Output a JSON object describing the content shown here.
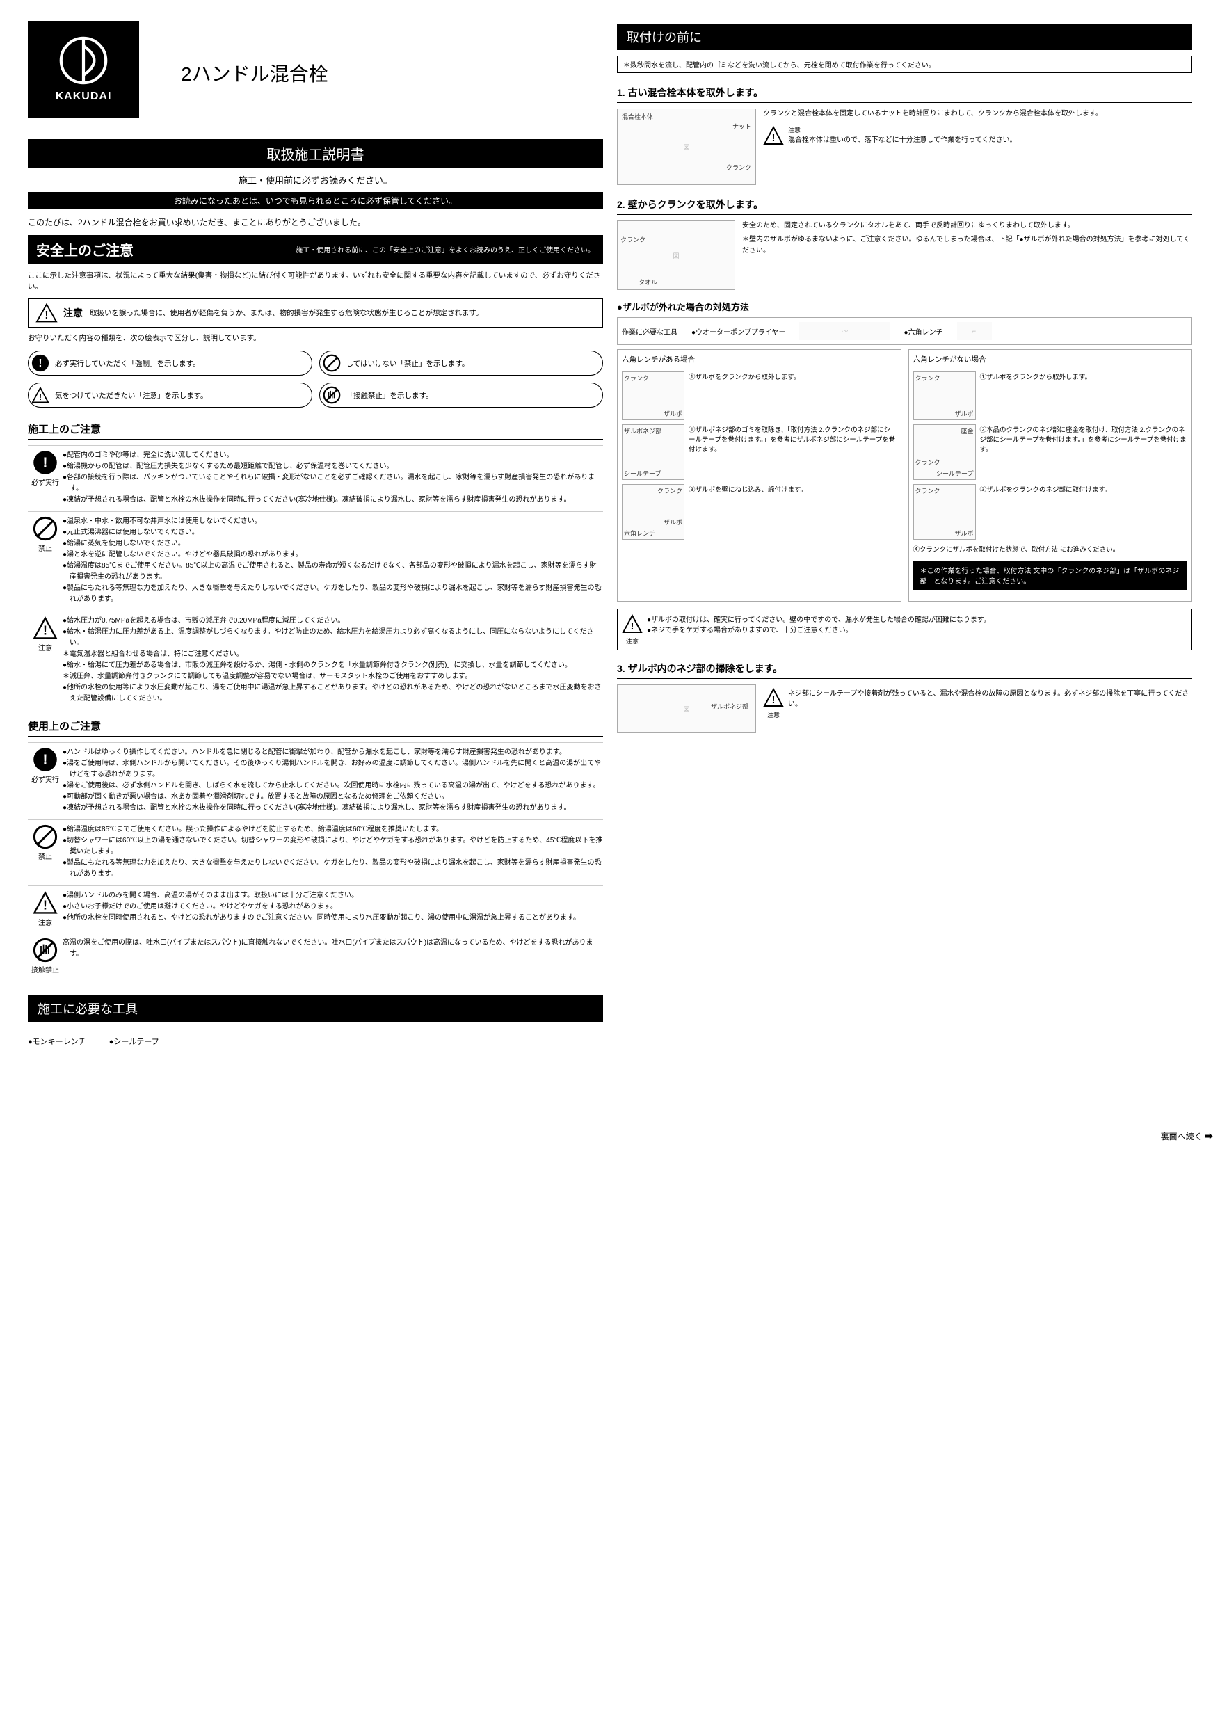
{
  "brand": "KAKUDAI",
  "product_title": "2ハンドル混合栓",
  "manual_title": "取扱施工説明書",
  "subtitle1": "施工・使用前に必ずお読みください。",
  "subtitle2": "お読みになったあとは、いつでも見られるところに必ず保管してください。",
  "intro": "このたびは、2ハンドル混合栓をお買い求めいただき、まことにありがとうございました。",
  "safety": {
    "header_big": "安全上のご注意",
    "header_small": "施工・使用される前に、この「安全上のご注意」をよくお読みのうえ、正しくご使用ください。",
    "intro": "ここに示した注意事項は、状況によって重大な結果(傷害・物損など)に結び付く可能性があります。いずれも安全に関する重要な内容を記載していますので、必ずお守りください。",
    "caution_label": "注意",
    "caution_text": "取扱いを誤った場合に、使用者が軽傷を負うか、または、物的損害が発生する危険な状態が生じることが想定されます。",
    "legend_intro": "お守りいただく内容の種類を、次の絵表示で区分し、説明しています。",
    "legend1": "必ず実行していただく「強制」を示します。",
    "legend2": "してはいけない「禁止」を示します。",
    "legend3": "気をつけていただきたい「注意」を示します。",
    "legend4": "「接触禁止」を示します。"
  },
  "construction": {
    "title": "施工上のご注意",
    "b1_label": "必ず実行",
    "b1_items": [
      "●配管内のゴミや砂等は、完全に洗い流してください。",
      "●給湯機からの配管は、配管圧力損失を少なくするため最短距離で配管し、必ず保温材を巻いてください。",
      "●各部の接続を行う際は、パッキンがついていることやそれらに破損・変形がないことを必ずご確認ください。漏水を起こし、家財等を濡らす財産損害発生の恐れがあります。",
      "●凍結が予想される場合は、配管と水栓の水抜操作を同時に行ってください(寒冷地仕様)。凍結破損により漏水し、家財等を濡らす財産損害発生の恐れがあります。"
    ],
    "b2_label": "禁止",
    "b2_items": [
      "●温泉水・中水・飲用不可な井戸水には使用しないでください。",
      "●元止式湯沸器には使用しないでください。",
      "●給湯に蒸気を使用しないでください。",
      "●湯と水を逆に配管しないでください。やけどや器具破損の恐れがあります。",
      "●給湯温度は85℃までご使用ください。85℃以上の高温でご使用されると、製品の寿命が短くなるだけでなく、各部品の変形や破損により漏水を起こし、家財等を濡らす財産損害発生の恐れがあります。",
      "●製品にもたれる等無理な力を加えたり、大きな衝撃を与えたりしないでください。ケガをしたり、製品の変形や破損により漏水を起こし、家財等を濡らす財産損害発生の恐れがあります。"
    ],
    "b3_label": "注意",
    "b3_items": [
      "●給水圧力が0.75MPaを超える場合は、市販の減圧弁で0.20MPa程度に減圧してください。",
      "●給水・給湯圧力に圧力差がある上、温度調整がしづらくなります。やけど防止のため、給水圧力を給湯圧力より必ず高くなるようにし、同圧にならないようにしてください。",
      "＊電気温水器と組合わせる場合は、特にご注意ください。",
      "●給水・給湯にて圧力差がある場合は、市販の減圧弁を設けるか、湯側・水側のクランクを「水量調節弁付きクランク(別売)」に交換し、水量を調節してください。",
      "＊減圧弁、水量調節弁付きクランクにて調節しても温度調整が容易でない場合は、サーモスタット水栓のご使用をおすすめします。",
      "●他所の水栓の使用等により水圧変動が起こり、湯をご使用中に湯温が急上昇することがあります。やけどの恐れがあるため、やけどの恐れがないところまで水圧変動をおさえた配管設備にしてください。"
    ]
  },
  "usage": {
    "title": "使用上のご注意",
    "b1_label": "必ず実行",
    "b1_items": [
      "●ハンドルはゆっくり操作してください。ハンドルを急に閉じると配管に衝撃が加わり、配管から漏水を起こし、家財等を濡らす財産損害発生の恐れがあります。",
      "●湯をご使用時は、水側ハンドルから開いてください。その後ゆっくり湯側ハンドルを開き、お好みの温度に調節してください。湯側ハンドルを先に開くと高温の湯が出てやけどをする恐れがあります。",
      "●湯をご使用後は、必ず水側ハンドルを開き、しばらく水を流してから止水してください。次回使用時に水栓内に残っている高温の湯が出て、やけどをする恐れがあります。",
      "●可動部が固く動きが悪い場合は、水あか固着や潤滑剤切れです。放置すると故障の原因となるため修理をご依頼ください。",
      "●凍結が予想される場合は、配管と水栓の水抜操作を同時に行ってください(寒冷地仕様)。凍結破損により漏水し、家財等を濡らす財産損害発生の恐れがあります。"
    ],
    "b2_label": "禁止",
    "b2_items": [
      "●給湯温度は85℃までご使用ください。誤った操作によるやけどを防止するため、給湯温度は60℃程度を推奨いたします。",
      "●切替シャワーには60℃以上の湯を通さないでください。切替シャワーの変形や破損により、やけどやケガをする恐れがあります。やけどを防止するため、45℃程度以下を推奨いたします。",
      "●製品にもたれる等無理な力を加えたり、大きな衝撃を与えたりしないでください。ケガをしたり、製品の変形や破損により漏水を起こし、家財等を濡らす財産損害発生の恐れがあります。"
    ],
    "b3_label": "注意",
    "b3_items": [
      "●湯側ハンドルのみを開く場合、高温の湯がそのまま出ます。取扱いには十分ご注意ください。",
      "●小さいお子様だけでのご使用は避けてください。やけどやケガをする恐れがあります。",
      "●他所の水栓を同時使用されると、やけどの恐れがありますのでご注意ください。同時使用により水圧変動が起こり、湯の使用中に湯温が急上昇することがあります。"
    ],
    "b4_label": "接触禁止",
    "b4_items": [
      "高温の湯をご使用の際は、吐水口(パイプまたはスパウト)に直接触れないでください。吐水口(パイプまたはスパウト)は高温になっているため、やけどをする恐れがあります。"
    ]
  },
  "tools": {
    "title": "施工に必要な工具",
    "item1": "●モンキーレンチ",
    "item2": "●シールテープ"
  },
  "right": {
    "title": "取付けの前に",
    "top_note": "＊数秒間水を流し、配管内のゴミなどを洗い流してから、元栓を閉めて取付作業を行ってください。",
    "step1_title": "1. 古い混合栓本体を取外します。",
    "step1_text": "クランクと混合栓本体を固定しているナットを時計回りにまわして、クランクから混合栓本体を取外します。",
    "step1_caution": "混合栓本体は重いので、落下などに十分注意して作業を行ってください。",
    "step1_l1": "混合栓本体",
    "step1_l2": "ナット",
    "step1_l3": "クランク",
    "step2_title": "2. 壁からクランクを取外します。",
    "step2_text": "安全のため、固定されているクランクにタオルをあて、両手で反時計回りにゆっくりまわして取外します。",
    "step2_text2": "＊壁内のザルボがゆるまないように、ご注意ください。ゆるんでしまった場合は、下記「●ザルボが外れた場合の対処方法」を参考に対処してください。",
    "step2_l1": "クランク",
    "step2_l2": "タオル",
    "zarubo_title": "●ザルボが外れた場合の対処方法",
    "zarubo_tools_label": "作業に必要な工具",
    "zarubo_tool1": "●ウオーターポンププライヤー",
    "zarubo_tool2": "●六角レンチ",
    "gcol1_title": "六角レンチがある場合",
    "gcol2_title": "六角レンチがない場合",
    "g1_s1_l": "クランク",
    "g1_s1_r": "①ザルボをクランクから取外します。",
    "g1_s1_z": "ザルボ",
    "g1_s2_l": "ザルボネジ部",
    "g1_s2_r": "①ザルボネジ部のゴミを取除き、「取付方法 2.クランクのネジ部にシールテープを巻付けます。」を参考にザルボネジ部にシールテープを巻付けます。",
    "g1_s2_st": "シールテープ",
    "g1_s3_l": "クランク",
    "g1_s3_r": "③ザルボを壁にねじ込み、締付けます。",
    "g1_s3_z": "ザルボ",
    "g1_s3_h": "六角レンチ",
    "g2_s1_l": "クランク",
    "g2_s1_r": "①ザルボをクランクから取外します。",
    "g2_s1_z": "ザルボ",
    "g2_s2_l": "座金",
    "g2_s2_r": "②本品のクランクのネジ部に座金を取付け、取付方法  2.クランクのネジ部にシールテープを巻付けます。」を参考にシールテープを巻付けます。",
    "g2_s2_c": "クランク",
    "g2_s2_st": "シールテープ",
    "g2_s3_l": "クランク",
    "g2_s3_r": "③ザルボをクランクのネジ部に取付けます。",
    "g2_s3_z": "ザルボ",
    "g_foot": "④クランクにザルボを取付けた状態で、取付方法 にお進みください。",
    "black_note": "＊この作業を行った場合、取付方法 文中の「クランクのネジ部」は「ザルボのネジ部」となります。ご注意ください。",
    "zarubo_caution1": "●ザルボの取付けは、確実に行ってください。壁の中ですので、漏水が発生した場合の確認が困難になります。",
    "zarubo_caution2": "●ネジで手をケガする場合がありますので、十分ご注意ください。",
    "step3_title": "3. ザルボ内のネジ部の掃除をします。",
    "step3_label": "ザルボネジ部",
    "step3_caution": "ネジ部にシールテープや接着剤が残っていると、漏水や混合栓の故障の原因となります。必ずネジ部の掃除を丁寧に行ってください。"
  },
  "footer": "裏面へ続く ➡",
  "icons": {
    "caution_label": "注意"
  }
}
